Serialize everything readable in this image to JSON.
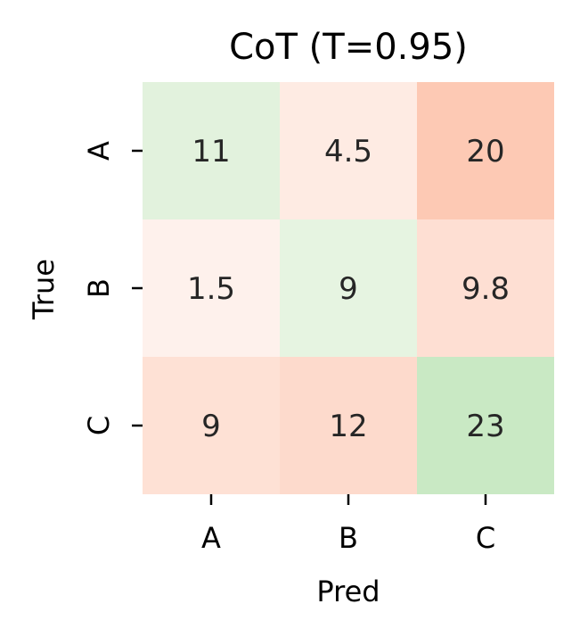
{
  "chart_data": {
    "type": "heatmap",
    "title": "CoT (T=0.95)",
    "xlabel": "Pred",
    "ylabel": "True",
    "x_categories": [
      "A",
      "B",
      "C"
    ],
    "y_categories": [
      "A",
      "B",
      "C"
    ],
    "values": [
      [
        11,
        4.5,
        20
      ],
      [
        1.5,
        9,
        9.8
      ],
      [
        9,
        12,
        23
      ]
    ],
    "value_labels": [
      [
        "11",
        "4.5",
        "20"
      ],
      [
        "1.5",
        "9",
        "9.8"
      ],
      [
        "9",
        "12",
        "23"
      ]
    ],
    "colors": {
      "diagonal_scale": [
        "#e6f4e1",
        "#c9e9c4"
      ],
      "off_diagonal_scale": [
        "#fef1ec",
        "#fdc9b4"
      ],
      "cell_text": "#262626"
    },
    "grid": false,
    "colorbar": false
  }
}
